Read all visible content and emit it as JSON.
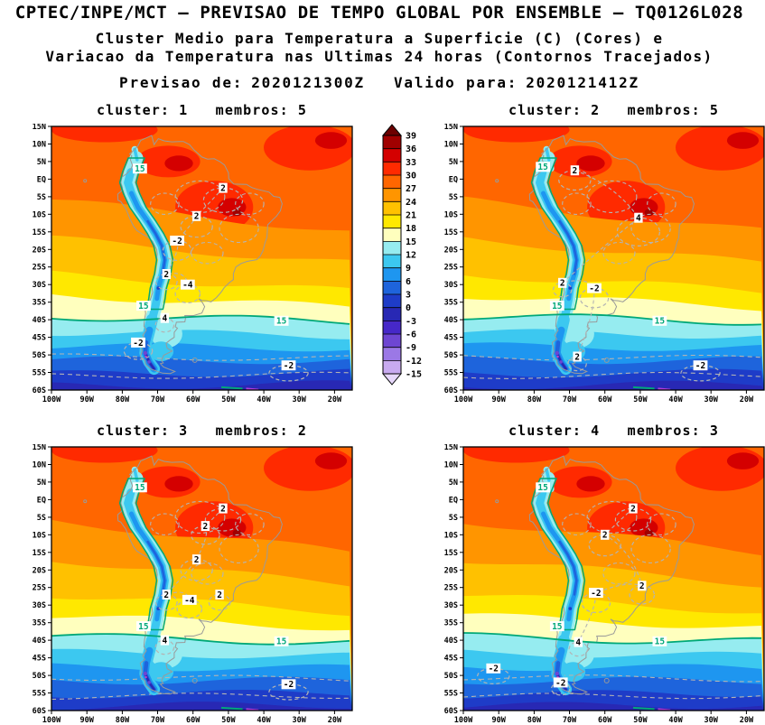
{
  "header": {
    "title": "CPTEC/INPE/MCT — PREVISAO DE TEMPO GLOBAL POR ENSEMBLE — TQ0126L028",
    "subtitle1": "Cluster Medio para Temperatura a Superficie (C) (Cores) e",
    "subtitle2": "Variacao da Temperatura nas Ultimas 24 horas (Contornos Tracejados)",
    "prev_label": "Previsao de:",
    "prev_value": "2020121300Z",
    "valid_label": "Valido para:",
    "valid_value": "2020121412Z"
  },
  "colorbar": {
    "levels": [
      39,
      36,
      33,
      30,
      27,
      24,
      21,
      18,
      15,
      12,
      9,
      6,
      3,
      0,
      -3,
      -6,
      -9,
      -12,
      -15
    ],
    "colors": [
      "#6d0000",
      "#a00000",
      "#d40000",
      "#ff2a00",
      "#ff6600",
      "#ff9500",
      "#ffc100",
      "#ffe800",
      "#ffffbe",
      "#96ecf0",
      "#3cc8f0",
      "#1e96f0",
      "#1e64dc",
      "#1e3cc8",
      "#2828b4",
      "#4628c8",
      "#6e46d2",
      "#9b78e6",
      "#c8aaf0",
      "#e6d7fa"
    ],
    "isotherm_color": "#00a878",
    "contour_color": "#b4b4b4"
  },
  "axes": {
    "lat_labels": [
      "15N",
      "10N",
      "5N",
      "EQ",
      "5S",
      "10S",
      "15S",
      "20S",
      "25S",
      "30S",
      "35S",
      "40S",
      "45S",
      "50S",
      "55S",
      "60S"
    ],
    "lat_values": [
      15,
      10,
      5,
      0,
      -5,
      -10,
      -15,
      -20,
      -25,
      -30,
      -35,
      -40,
      -45,
      -50,
      -55,
      -60
    ],
    "lon_labels": [
      "100W",
      "90W",
      "80W",
      "70W",
      "60W",
      "50W",
      "40W",
      "30W",
      "20W"
    ],
    "lon_values": [
      -100,
      -90,
      -80,
      -70,
      -60,
      -50,
      -40,
      -30,
      -20
    ]
  },
  "panels": [
    {
      "cluster_label": "cluster: 1",
      "membros_label": "membros: 5",
      "phase": 0.2,
      "contours": [
        {
          "text": "2",
          "lon": -51.5,
          "lat": -2.5,
          "rx": 5.5,
          "ry": 3.5
        },
        {
          "text": "2",
          "lon": -59,
          "lat": -10.5,
          "rx": 4.5,
          "ry": 3
        },
        {
          "text": "-2",
          "lon": -64.5,
          "lat": -17.5,
          "rx": 4,
          "ry": 2.8
        },
        {
          "text": "2",
          "lon": -67.5,
          "lat": -27,
          "rx": 3,
          "ry": 2.2
        },
        {
          "text": "-4",
          "lon": -61.5,
          "lat": -30,
          "rx": 3.5,
          "ry": 2.6
        },
        {
          "text": "4",
          "lon": -68,
          "lat": -39.5,
          "rx": 2.6,
          "ry": 2
        },
        {
          "text": "-2",
          "lon": -75.5,
          "lat": -46.5,
          "rx": 4,
          "ry": 2.4
        },
        {
          "text": "-2",
          "lon": -33,
          "lat": -53,
          "rx": 5.5,
          "ry": 2.2
        }
      ],
      "isotherms": [
        {
          "text": "15",
          "lon": -75,
          "lat": 3
        },
        {
          "text": "15",
          "lon": -74,
          "lat": -36
        },
        {
          "text": "15",
          "lon": -35,
          "lat": -40.3
        }
      ]
    },
    {
      "cluster_label": "cluster: 2",
      "membros_label": "membros: 5",
      "phase": 1.7,
      "contours": [
        {
          "text": "2",
          "lon": -68.5,
          "lat": 2.5,
          "rx": 4.5,
          "ry": 2.8
        },
        {
          "text": "4",
          "lon": -50.5,
          "lat": -11,
          "rx": 6,
          "ry": 4
        },
        {
          "text": "2",
          "lon": -72,
          "lat": -29.5,
          "rx": 2.6,
          "ry": 2
        },
        {
          "text": "-2",
          "lon": -63,
          "lat": -31,
          "rx": 4,
          "ry": 2.8
        },
        {
          "text": "2",
          "lon": -67.8,
          "lat": -50.5,
          "rx": 2.6,
          "ry": 2
        },
        {
          "text": "-2",
          "lon": -33,
          "lat": -53,
          "rx": 5.5,
          "ry": 2.2
        }
      ],
      "isotherms": [
        {
          "text": "15",
          "lon": -77.5,
          "lat": 3.5
        },
        {
          "text": "15",
          "lon": -73.5,
          "lat": -36
        },
        {
          "text": "15",
          "lon": -44.5,
          "lat": -40.3
        }
      ]
    },
    {
      "cluster_label": "cluster: 3",
      "membros_label": "membros: 2",
      "phase": 2.9,
      "contours": [
        {
          "text": "2",
          "lon": -51.5,
          "lat": -2.5,
          "rx": 5,
          "ry": 3.2
        },
        {
          "text": "2",
          "lon": -56.5,
          "lat": -7.5,
          "rx": 4,
          "ry": 2.6
        },
        {
          "text": "2",
          "lon": -59,
          "lat": -17,
          "rx": 4.5,
          "ry": 3
        },
        {
          "text": "2",
          "lon": -67.5,
          "lat": -27,
          "rx": 3,
          "ry": 2.2
        },
        {
          "text": "-4",
          "lon": -61,
          "lat": -28.5,
          "rx": 3.5,
          "ry": 2.6
        },
        {
          "text": "2",
          "lon": -52.5,
          "lat": -27,
          "rx": 3,
          "ry": 2.2
        },
        {
          "text": "4",
          "lon": -68,
          "lat": -40,
          "rx": 2.6,
          "ry": 2
        },
        {
          "text": "-2",
          "lon": -33,
          "lat": -52.5,
          "rx": 5.5,
          "ry": 2.2
        }
      ],
      "isotherms": [
        {
          "text": "15",
          "lon": -75,
          "lat": 3.5
        },
        {
          "text": "15",
          "lon": -74,
          "lat": -36
        },
        {
          "text": "15",
          "lon": -35,
          "lat": -40.3
        }
      ]
    },
    {
      "cluster_label": "cluster: 4",
      "membros_label": "membros: 3",
      "phase": 4.1,
      "contours": [
        {
          "text": "2",
          "lon": -52,
          "lat": -2.5,
          "rx": 5,
          "ry": 3.2
        },
        {
          "text": "2",
          "lon": -60,
          "lat": -10,
          "rx": 4.5,
          "ry": 3
        },
        {
          "text": "2",
          "lon": -49.5,
          "lat": -24.5,
          "rx": 3.5,
          "ry": 2.6
        },
        {
          "text": "-2",
          "lon": -62.5,
          "lat": -26.5,
          "rx": 4,
          "ry": 2.8
        },
        {
          "text": "4",
          "lon": -67.5,
          "lat": -40.5,
          "rx": 2.6,
          "ry": 2
        },
        {
          "text": "-2",
          "lon": -91.5,
          "lat": -48,
          "rx": 4.5,
          "ry": 2.2
        },
        {
          "text": "-2",
          "lon": -72.5,
          "lat": -52,
          "rx": 2.6,
          "ry": 1.8
        }
      ],
      "isotherms": [
        {
          "text": "15",
          "lon": -77.5,
          "lat": 3.5
        },
        {
          "text": "15",
          "lon": -73.5,
          "lat": -36
        },
        {
          "text": "15",
          "lon": -44.5,
          "lat": -40.3
        }
      ]
    }
  ],
  "chart_data": {
    "type": "heatmap",
    "title": "CPTEC/INPE/MCT — PREVISAO DE TEMPO GLOBAL POR ENSEMBLE — TQ0126L028",
    "subtitle": "Cluster Medio para Temperatura a Superficie (C) (Cores) e Variacao da Temperatura nas Ultimas 24 horas (Contornos Tracejados)",
    "forecast_init": "2020121300Z",
    "forecast_valid": "2020121412Z",
    "units": "C",
    "colorbar_levels": [
      39,
      36,
      33,
      30,
      27,
      24,
      21,
      18,
      15,
      12,
      9,
      6,
      3,
      0,
      -3,
      -6,
      -9,
      -12,
      -15
    ],
    "lon_range": [
      "100W",
      "20W"
    ],
    "lat_range": [
      "60S",
      "15N"
    ],
    "legend_position": "center-top between first two panels",
    "panels": [
      {
        "cluster": 1,
        "membros": 5,
        "temp_change_labels": [
          "2",
          "2",
          "-2",
          "2",
          "-4",
          "4",
          "-2",
          "-2"
        ],
        "isotherm_labels": [
          "15",
          "15",
          "15"
        ]
      },
      {
        "cluster": 2,
        "membros": 5,
        "temp_change_labels": [
          "2",
          "4",
          "2",
          "-2",
          "2",
          "-2"
        ],
        "isotherm_labels": [
          "15",
          "15",
          "15"
        ]
      },
      {
        "cluster": 3,
        "membros": 2,
        "temp_change_labels": [
          "2",
          "2",
          "2",
          "2",
          "-4",
          "2",
          "4",
          "-2"
        ],
        "isotherm_labels": [
          "15",
          "15",
          "15"
        ]
      },
      {
        "cluster": 4,
        "membros": 3,
        "temp_change_labels": [
          "2",
          "2",
          "2",
          "-2",
          "4",
          "-2",
          "-2"
        ],
        "isotherm_labels": [
          "15",
          "15",
          "15"
        ]
      }
    ]
  }
}
